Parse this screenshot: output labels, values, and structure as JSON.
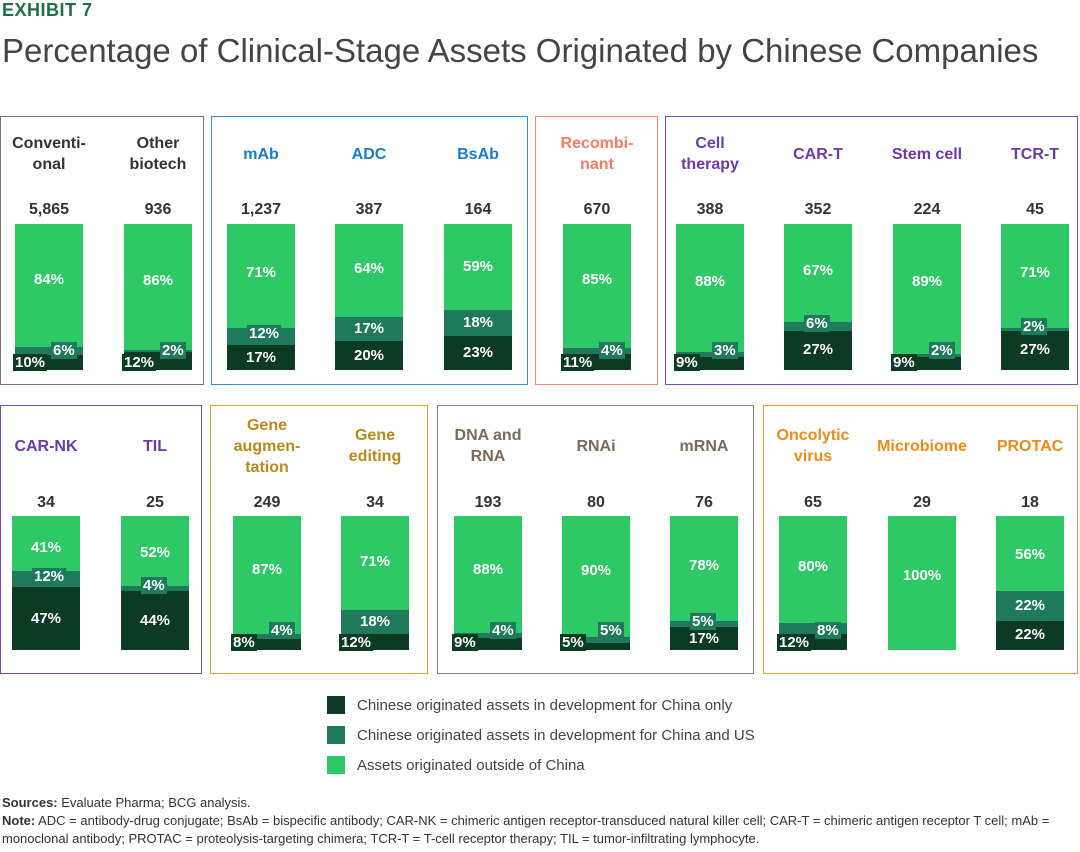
{
  "header": {
    "exhibit": "EXHIBIT 7",
    "title": "Percentage of Clinical-Stage Assets Originated by Chinese Companies"
  },
  "colors": {
    "china_only": "#0d3a23",
    "china_us": "#1e7a5a",
    "outside": "#2ec866"
  },
  "legend": [
    {
      "key": "china_only",
      "label": "Chinese originated assets in development for China only"
    },
    {
      "key": "china_us",
      "label": "Chinese originated assets in development for China and US"
    },
    {
      "key": "outside",
      "label": "Assets originated outside of China"
    }
  ],
  "chart_data": {
    "type": "bar",
    "stacked": true,
    "series_names": [
      "Chinese originated assets in development for China only",
      "Chinese originated assets in development for China and US",
      "Assets originated outside of China"
    ],
    "groups": [
      {
        "color": "#777777",
        "bars": [
          {
            "name": "Conventi-onal",
            "label_lines": [
              "Conventi-",
              "onal"
            ],
            "label_color": "#333333",
            "count": "5,865",
            "values": [
              10,
              6,
              84
            ]
          },
          {
            "name": "Other biotech",
            "label_lines": [
              "Other",
              "biotech"
            ],
            "label_color": "#333333",
            "count": "936",
            "values": [
              12,
              2,
              86
            ]
          }
        ]
      },
      {
        "color": "#3a8fd0",
        "bars": [
          {
            "name": "mAb",
            "label_lines": [
              "mAb"
            ],
            "label_color": "#1a7cc8",
            "count": "1,237",
            "values": [
              17,
              12,
              71
            ]
          },
          {
            "name": "ADC",
            "label_lines": [
              "ADC"
            ],
            "label_color": "#1a7cc8",
            "count": "387",
            "values": [
              20,
              17,
              64
            ]
          },
          {
            "name": "BsAb",
            "label_lines": [
              "BsAb"
            ],
            "label_color": "#1a7cc8",
            "count": "164",
            "values": [
              23,
              18,
              59
            ]
          }
        ]
      },
      {
        "color": "#f08a70",
        "bars": [
          {
            "name": "Recombi-nant",
            "label_lines": [
              "Recombi-",
              "nant"
            ],
            "label_color": "#f07d65",
            "count": "670",
            "values": [
              11,
              4,
              85
            ]
          }
        ]
      },
      {
        "color": "#7b4db3",
        "bars": [
          {
            "name": "Cell therapy",
            "label_lines": [
              "Cell",
              "therapy"
            ],
            "label_color": "#6a3aa8",
            "count": "388",
            "values": [
              9,
              3,
              88
            ]
          },
          {
            "name": "CAR-T",
            "label_lines": [
              "CAR-T"
            ],
            "label_color": "#6a3aa8",
            "count": "352",
            "values": [
              27,
              6,
              67
            ]
          },
          {
            "name": "Stem cell",
            "label_lines": [
              "Stem cell"
            ],
            "label_color": "#6a3aa8",
            "count": "224",
            "values": [
              9,
              2,
              89
            ]
          },
          {
            "name": "TCR-T",
            "label_lines": [
              "TCR-T"
            ],
            "label_color": "#6a3aa8",
            "count": "45",
            "values": [
              27,
              2,
              71
            ]
          }
        ]
      },
      {
        "color": "#7b4db3",
        "bars": [
          {
            "name": "CAR-NK",
            "label_lines": [
              "CAR-NK"
            ],
            "label_color": "#6a3aa8",
            "count": "34",
            "values": [
              47,
              12,
              41
            ]
          },
          {
            "name": "TIL",
            "label_lines": [
              "TIL"
            ],
            "label_color": "#6a3aa8",
            "count": "25",
            "values": [
              44,
              4,
              52
            ]
          }
        ]
      },
      {
        "color": "#d4a838",
        "bars": [
          {
            "name": "Gene augmen-tation",
            "label_lines": [
              "Gene",
              "augmen-",
              "tation"
            ],
            "label_color": "#b8891a",
            "count": "249",
            "values": [
              8,
              4,
              87
            ]
          },
          {
            "name": "Gene editing",
            "label_lines": [
              "Gene",
              "editing"
            ],
            "label_color": "#b8891a",
            "count": "34",
            "values": [
              12,
              18,
              71
            ]
          }
        ]
      },
      {
        "color": "#8a8078",
        "bars": [
          {
            "name": "DNA and RNA",
            "label_lines": [
              "DNA and",
              "RNA"
            ],
            "label_color": "#7a6a5a",
            "count": "193",
            "values": [
              9,
              4,
              88
            ]
          },
          {
            "name": "RNAi",
            "label_lines": [
              "RNAi"
            ],
            "label_color": "#7a6a5a",
            "count": "80",
            "values": [
              5,
              5,
              90
            ]
          },
          {
            "name": "mRNA",
            "label_lines": [
              "mRNA"
            ],
            "label_color": "#7a6a5a",
            "count": "76",
            "values": [
              17,
              5,
              78
            ]
          }
        ]
      },
      {
        "color": "#f09a3a",
        "bars": [
          {
            "name": "Oncolytic virus",
            "label_lines": [
              "Oncolytic",
              "virus"
            ],
            "label_color": "#f08a1a",
            "count": "65",
            "values": [
              12,
              8,
              80
            ]
          },
          {
            "name": "Microbiome",
            "label_lines": [
              "Microbiome"
            ],
            "label_color": "#f08a1a",
            "count": "29",
            "values": [
              0,
              0,
              100
            ]
          },
          {
            "name": "PROTAC",
            "label_lines": [
              "PROTAC"
            ],
            "label_color": "#f08a1a",
            "count": "18",
            "values": [
              22,
              22,
              56
            ]
          }
        ]
      }
    ]
  },
  "footer": {
    "sources_label": "Sources:",
    "sources_text": " Evaluate Pharma; BCG analysis.",
    "note_label": "Note:",
    "note_text": " ADC = antibody-drug conjugate; BsAb = bispecific antibody; CAR-NK = chimeric antigen receptor-transduced natural killer cell; CAR-T = chimeric antigen receptor T cell; mAb = monoclonal antibody; PROTAC = proteolysis-targeting chimera; TCR-T = T-cell receptor therapy; TIL = tumor-infiltrating lymphocyte."
  }
}
